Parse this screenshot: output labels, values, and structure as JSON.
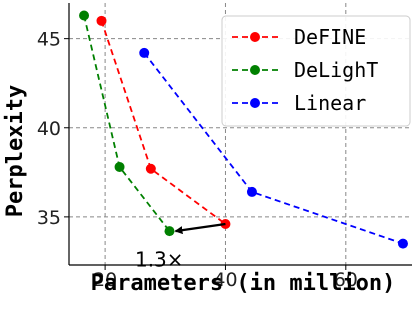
{
  "chart_data": {
    "type": "line",
    "xlabel": "Parameters (in million)",
    "ylabel": "Perplexity",
    "xlim": [
      14,
      71
    ],
    "ylim": [
      32.3,
      47.0
    ],
    "xticks": [
      20,
      40,
      60
    ],
    "yticks": [
      35,
      40,
      45
    ],
    "xtick_labels": [
      "20",
      "40",
      "60"
    ],
    "ytick_labels": [
      "35",
      "40",
      "45"
    ],
    "grid": true,
    "grid_style": "dashed",
    "legend_position": "top-right",
    "series": [
      {
        "name": "DeFINE",
        "color": "#ff0000",
        "x": [
          19.4,
          27.6,
          40.0
        ],
        "y": [
          46.0,
          37.7,
          34.6
        ]
      },
      {
        "name": "DeLighT",
        "color": "#008000",
        "x": [
          16.5,
          22.4,
          30.7
        ],
        "y": [
          46.3,
          37.8,
          34.2
        ]
      },
      {
        "name": "Linear",
        "color": "#0000ff",
        "x": [
          26.5,
          44.4,
          69.5
        ],
        "y": [
          44.2,
          36.4,
          33.5
        ]
      }
    ],
    "annotations": [
      {
        "text": "1.3×",
        "arrow_from": [
          40.0,
          34.6
        ],
        "arrow_to": [
          30.7,
          34.2
        ],
        "text_at": [
          29.0,
          32.6
        ]
      }
    ]
  }
}
